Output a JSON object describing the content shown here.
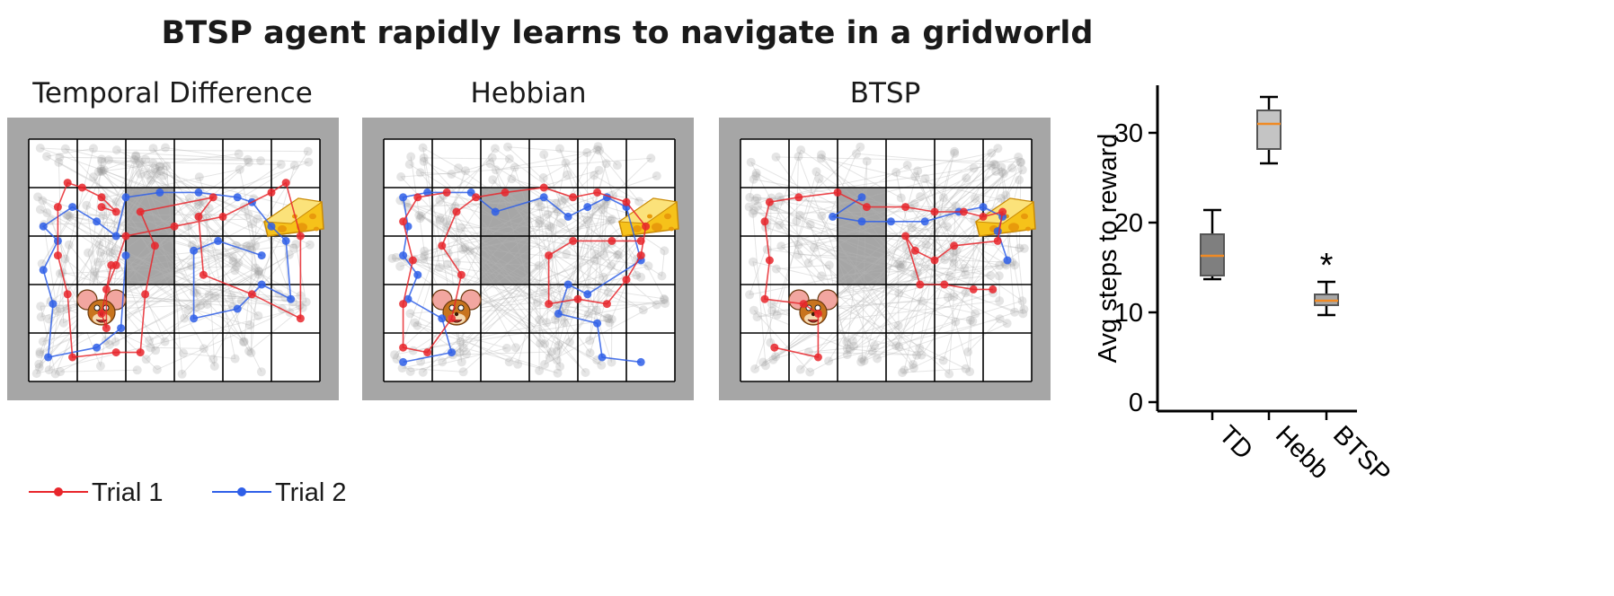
{
  "figure": {
    "title": "BTSP agent rapidly learns to navigate in a gridworld",
    "legend": {
      "trial1": "Trial 1",
      "trial2": "Trial 2"
    },
    "colors": {
      "trial1": "#e8262b",
      "trial2": "#2f5fe8",
      "frame": "#a6a6a6",
      "wall": "#a6a6a6",
      "ghost": "#b4b4b4",
      "cheese": "#f6c21a",
      "mouse": "#c8741e"
    },
    "icons": {
      "goal": "cheese-icon",
      "start": "mouse-icon"
    }
  },
  "panels": [
    {
      "title": "Temporal Difference",
      "trial1": [
        [
          1.7,
          2.4
        ],
        [
          1.5,
          1.4
        ],
        [
          1.6,
          1.1
        ],
        [
          1.6,
          1.9
        ],
        [
          1.8,
          2.4
        ],
        [
          2.0,
          3.0
        ],
        [
          3.0,
          3.2
        ],
        [
          4.0,
          3.4
        ],
        [
          5.0,
          3.9
        ],
        [
          5.3,
          4.1
        ],
        [
          5.6,
          3.0
        ],
        [
          5.6,
          1.3
        ],
        [
          4.6,
          1.8
        ],
        [
          3.6,
          2.2
        ],
        [
          3.5,
          3.4
        ],
        [
          3.8,
          3.8
        ],
        [
          2.3,
          3.5
        ],
        [
          2.6,
          2.8
        ],
        [
          2.4,
          1.8
        ],
        [
          2.3,
          0.6
        ],
        [
          1.8,
          0.6
        ],
        [
          0.9,
          0.5
        ],
        [
          0.8,
          1.8
        ],
        [
          0.6,
          2.6
        ],
        [
          0.6,
          3.6
        ],
        [
          0.8,
          4.1
        ],
        [
          1.1,
          4.0
        ],
        [
          1.5,
          3.8
        ],
        [
          1.8,
          3.5
        ],
        [
          1.5,
          3.6
        ]
      ],
      "trial2": [
        [
          2.0,
          2.6
        ],
        [
          1.9,
          1.1
        ],
        [
          1.4,
          0.7
        ],
        [
          0.4,
          0.5
        ],
        [
          0.5,
          1.6
        ],
        [
          0.3,
          2.3
        ],
        [
          0.6,
          2.9
        ],
        [
          0.3,
          3.2
        ],
        [
          0.9,
          3.6
        ],
        [
          1.4,
          3.3
        ],
        [
          1.8,
          3.0
        ],
        [
          2.0,
          3.8
        ],
        [
          2.7,
          3.9
        ],
        [
          3.5,
          3.9
        ],
        [
          4.3,
          3.8
        ],
        [
          4.6,
          3.7
        ],
        [
          5.0,
          3.2
        ],
        [
          5.3,
          2.9
        ],
        [
          5.4,
          1.7
        ],
        [
          4.8,
          2.0
        ],
        [
          4.3,
          1.5
        ],
        [
          3.4,
          1.3
        ],
        [
          3.4,
          2.7
        ],
        [
          3.9,
          2.9
        ],
        [
          4.8,
          2.6
        ]
      ]
    },
    {
      "title": "Hebbian",
      "trial1": [
        [
          1.3,
          3.9
        ],
        [
          0.7,
          3.8
        ],
        [
          0.4,
          3.3
        ],
        [
          0.6,
          2.5
        ],
        [
          0.4,
          1.6
        ],
        [
          0.4,
          0.7
        ],
        [
          0.9,
          0.6
        ],
        [
          1.4,
          1.3
        ],
        [
          1.6,
          2.2
        ],
        [
          1.2,
          2.8
        ],
        [
          1.5,
          3.5
        ],
        [
          1.9,
          3.8
        ],
        [
          2.5,
          3.9
        ],
        [
          3.3,
          4.0
        ],
        [
          3.9,
          3.8
        ],
        [
          4.4,
          3.9
        ],
        [
          5.0,
          3.7
        ],
        [
          5.4,
          3.2
        ],
        [
          5.3,
          2.6
        ],
        [
          5.0,
          2.1
        ],
        [
          4.6,
          1.6
        ],
        [
          4.0,
          1.7
        ],
        [
          3.4,
          1.6
        ],
        [
          3.4,
          2.6
        ],
        [
          3.9,
          2.9
        ],
        [
          4.7,
          2.9
        ],
        [
          5.3,
          2.9
        ]
      ],
      "trial2": [
        [
          0.4,
          0.4
        ],
        [
          1.4,
          0.6
        ],
        [
          1.2,
          1.3
        ],
        [
          0.5,
          1.7
        ],
        [
          0.7,
          2.2
        ],
        [
          0.4,
          2.6
        ],
        [
          0.5,
          3.2
        ],
        [
          0.4,
          3.8
        ],
        [
          0.9,
          3.9
        ],
        [
          1.8,
          3.9
        ],
        [
          2.3,
          3.5
        ],
        [
          3.3,
          3.8
        ],
        [
          3.8,
          3.4
        ],
        [
          4.2,
          3.6
        ],
        [
          4.6,
          3.8
        ],
        [
          5.0,
          3.6
        ],
        [
          5.3,
          2.5
        ],
        [
          4.2,
          1.8
        ],
        [
          3.8,
          2.0
        ],
        [
          3.6,
          1.4
        ],
        [
          4.4,
          1.2
        ],
        [
          4.5,
          0.5
        ],
        [
          5.3,
          0.4
        ]
      ]
    },
    {
      "title": "BTSP",
      "trial1": [
        [
          0.7,
          0.7
        ],
        [
          1.6,
          0.5
        ],
        [
          1.6,
          1.4
        ],
        [
          1.3,
          1.6
        ],
        [
          0.5,
          1.7
        ],
        [
          0.6,
          2.5
        ],
        [
          0.5,
          3.3
        ],
        [
          0.6,
          3.7
        ],
        [
          1.2,
          3.8
        ],
        [
          2.0,
          3.9
        ],
        [
          2.6,
          3.6
        ],
        [
          3.4,
          3.6
        ],
        [
          4.0,
          3.5
        ],
        [
          4.6,
          3.5
        ],
        [
          5.0,
          3.4
        ],
        [
          5.4,
          3.5
        ],
        [
          5.3,
          2.9
        ],
        [
          4.4,
          2.8
        ],
        [
          4.0,
          2.5
        ],
        [
          3.6,
          2.7
        ],
        [
          3.4,
          3.0
        ],
        [
          3.7,
          2.0
        ],
        [
          4.2,
          2.0
        ],
        [
          4.8,
          1.9
        ],
        [
          5.2,
          1.9
        ]
      ],
      "trial2": [
        [
          5.5,
          2.5
        ],
        [
          5.3,
          3.1
        ],
        [
          5.4,
          3.4
        ],
        [
          5.0,
          3.6
        ],
        [
          4.5,
          3.5
        ],
        [
          3.8,
          3.3
        ],
        [
          3.1,
          3.3
        ],
        [
          2.5,
          3.3
        ],
        [
          1.9,
          3.4
        ],
        [
          2.5,
          3.8
        ]
      ]
    }
  ],
  "chart_data": {
    "type": "box",
    "title": "",
    "ylabel": "Avg steps to reward",
    "xlabel": "",
    "categories": [
      "TD",
      "Hebb",
      "BTSP"
    ],
    "boxes": [
      {
        "name": "TD",
        "whisker_low": 13.7,
        "q1": 14.1,
        "median": 16.3,
        "q3": 18.7,
        "whisker_high": 21.4,
        "color": "#7f7f7f"
      },
      {
        "name": "Hebb",
        "whisker_low": 26.6,
        "q1": 28.2,
        "median": 31.0,
        "q3": 32.5,
        "whisker_high": 34.0,
        "color": "#c4c4c4"
      },
      {
        "name": "BTSP",
        "whisker_low": 9.7,
        "q1": 10.8,
        "median": 11.3,
        "q3": 12.0,
        "whisker_high": 13.4,
        "color": "#a6a6a6"
      }
    ],
    "median_color": "#f08a24",
    "yticks": [
      0,
      10,
      20,
      30
    ],
    "ylim": [
      0,
      35
    ],
    "annotation": {
      "text": "*",
      "category": "BTSP"
    },
    "grid": false,
    "legend": "none"
  }
}
